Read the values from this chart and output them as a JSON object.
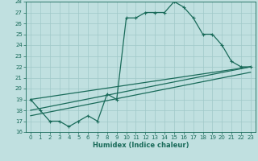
{
  "xlabel": "Humidex (Indice chaleur)",
  "bg_color": "#c0e0e0",
  "line_color": "#1a6b5a",
  "grid_color": "#a0c8c8",
  "xlim": [
    -0.5,
    23.5
  ],
  "ylim": [
    16,
    28
  ],
  "xticks": [
    0,
    1,
    2,
    3,
    4,
    5,
    6,
    7,
    8,
    9,
    10,
    11,
    12,
    13,
    14,
    15,
    16,
    17,
    18,
    19,
    20,
    21,
    22,
    23
  ],
  "yticks": [
    16,
    17,
    18,
    19,
    20,
    21,
    22,
    23,
    24,
    25,
    26,
    27,
    28
  ],
  "line1_x": [
    0,
    1,
    2,
    3,
    4,
    5,
    6,
    7,
    8,
    9,
    10,
    11,
    12,
    13,
    14,
    15,
    16,
    17,
    18,
    19,
    20,
    21,
    22,
    23
  ],
  "line1_y": [
    19,
    18,
    17,
    17,
    16.5,
    17,
    17.5,
    17,
    19.5,
    19,
    26.5,
    26.5,
    27,
    27,
    27,
    28,
    27.5,
    26.5,
    25,
    25,
    24,
    22.5,
    22,
    22
  ],
  "line2_x": [
    0,
    23
  ],
  "line2_y": [
    19,
    22
  ],
  "line3_x": [
    0,
    23
  ],
  "line3_y": [
    18,
    22
  ],
  "line4_x": [
    0,
    23
  ],
  "line4_y": [
    17.5,
    21.5
  ],
  "marker_size": 2.5,
  "line_width": 0.9,
  "tick_fontsize": 5.0,
  "xlabel_fontsize": 6.0
}
